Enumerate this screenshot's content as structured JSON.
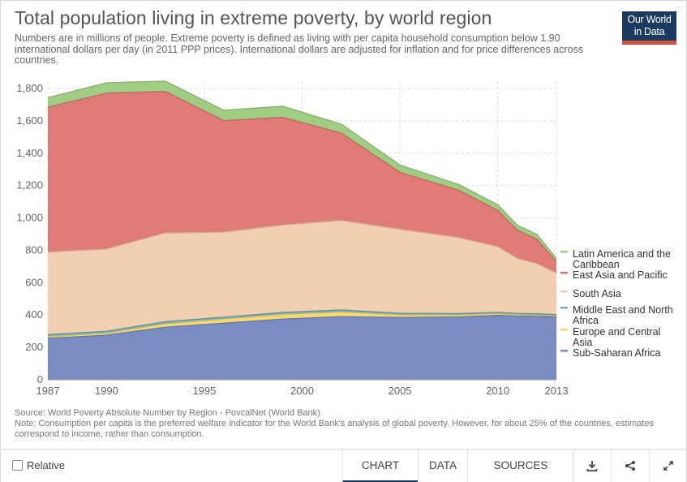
{
  "header": {
    "title": "Total population living in extreme poverty, by world region",
    "subtitle": "Numbers are in millions of people. Extreme poverty is defined as living with per capita household consumption below 1.90 international dollars per day (in 2011 PPP prices). International dollars are adjusted for inflation and for price differences across countries.",
    "logo_line1": "Our World",
    "logo_line2": "in Data"
  },
  "footer": {
    "source": "Source: World Poverty Absolute Number by Region - PovcalNet (World Bank)",
    "note": "Note: Consumption per capita is the preferred welfare indicator for the World Bank's analysis of global poverty. However, for about 25% of the countries, estimates correspond to income, rather than consumption."
  },
  "controls": {
    "relative_label": "Relative",
    "tabs": [
      "CHART",
      "DATA",
      "SOURCES"
    ],
    "active_tab": "CHART",
    "icons": [
      "download-icon",
      "share-icon",
      "expand-icon"
    ]
  },
  "chart_data": {
    "type": "area",
    "stacked": true,
    "x": [
      1987,
      1990,
      1993,
      1996,
      1999,
      2002,
      2005,
      2008,
      2010,
      2011,
      2012,
      2013
    ],
    "xticks": [
      1987,
      1990,
      1995,
      2000,
      2005,
      2010,
      2013
    ],
    "ylim": [
      0,
      1800
    ],
    "yticks": [
      0,
      200,
      400,
      600,
      800,
      1000,
      1200,
      1400,
      1600,
      1800
    ],
    "grid": true,
    "legend_position": "right",
    "series": [
      {
        "name": "Sub-Saharan Africa",
        "color": "#7386bf",
        "values": [
          256,
          276,
          325,
          350,
          375,
          390,
          385,
          388,
          398,
          393,
          392,
          388
        ]
      },
      {
        "name": "Europe and Central Asia",
        "color": "#f2d870",
        "values": [
          10,
          12,
          21,
          25,
          29,
          29,
          16,
          12,
          10,
          8,
          7,
          6
        ]
      },
      {
        "name": "Middle East and North Africa",
        "color": "#6fadb8",
        "values": [
          13,
          12,
          13,
          12,
          12,
          12,
          10,
          9,
          9,
          9,
          9,
          9
        ]
      },
      {
        "name": "South Asia",
        "color": "#f0ccac",
        "values": [
          510,
          508,
          548,
          525,
          540,
          553,
          519,
          470,
          405,
          340,
          310,
          256
        ]
      },
      {
        "name": "East Asia and Pacific",
        "color": "#de7470",
        "values": [
          895,
          963,
          875,
          689,
          666,
          540,
          352,
          293,
          225,
          175,
          150,
          71
        ]
      },
      {
        "name": "Latin America and the Caribbean",
        "color": "#9cc97c",
        "values": [
          60,
          64,
          64,
          64,
          68,
          56,
          45,
          35,
          35,
          30,
          30,
          20
        ]
      }
    ]
  }
}
